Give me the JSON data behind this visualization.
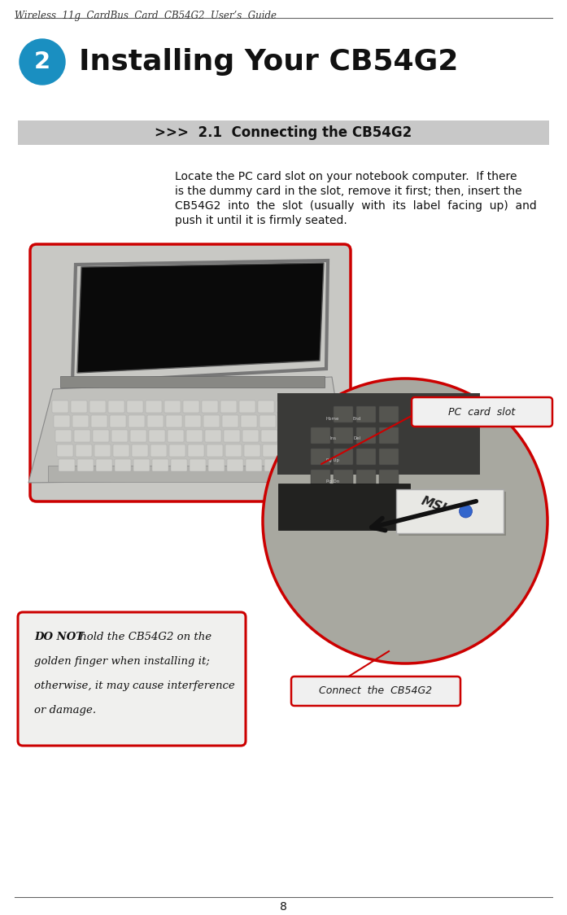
{
  "page_width": 6.97,
  "page_height": 11.24,
  "bg_color": "#ffffff",
  "header_text": "Wireless  11g  CardBus  Card  CB54G2  User’s  Guide",
  "header_fontsize": 8.5,
  "chapter_num": "2",
  "chapter_circle_color": "#1a8fc1",
  "chapter_title": "Installing Your CB54G2",
  "chapter_title_fontsize": 26,
  "section_bar_color": "#c8c8c8",
  "section_text": ">>>  2.1  Connecting the CB54G2",
  "section_fontsize": 12,
  "body_lines": [
    "Locate the PC card slot on your notebook computer.  If there",
    "is the dummy card in the slot, remove it first; then, insert the",
    "CB54G2  into  the  slot  (usually  with  its  label  facing  up)  and",
    "push it until it is firmly seated."
  ],
  "body_fontsize": 10,
  "label_pc_card_slot": "PC  card  slot",
  "label_connect": "Connect  the  CB54G2",
  "warning_bold": "DO NOT",
  "warning_rest": " hold the CB54G2 on the",
  "warning_line2": "golden finger when installing it;",
  "warning_line3": "otherwise, it may cause interference",
  "warning_line4": "or damage.",
  "warning_fontsize": 9.5,
  "footer_text": "8",
  "red_color": "#cc0000",
  "label_box_bg": "#f0f0f0",
  "label_fontsize": 9,
  "laptop_bg": "#c8c8c4",
  "laptop_screen_bg": "#1a1a1a",
  "laptop_body_bg": "#b8b8b4",
  "zoom_bg": "#a8a8a0"
}
